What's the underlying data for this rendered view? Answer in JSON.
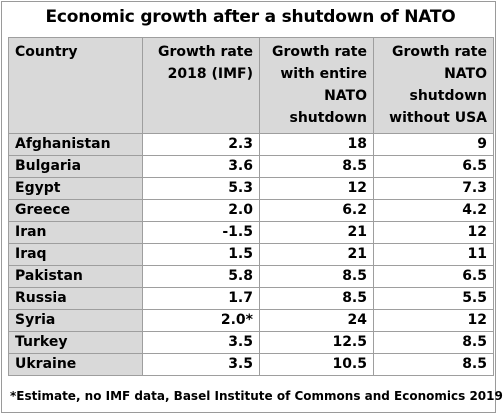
{
  "title": "Economic growth after a shutdown of NATO",
  "columns": [
    "Country",
    "Growth rate 2018 (IMF)",
    "Growth rate with entire NATO shutdown",
    "Growth rate NATO shutdown without USA"
  ],
  "rows": [
    {
      "country": "Afghanistan",
      "imf": "2.3",
      "full": "18",
      "no_usa": "9"
    },
    {
      "country": "Bulgaria",
      "imf": "3.6",
      "full": "8.5",
      "no_usa": "6.5"
    },
    {
      "country": "Egypt",
      "imf": "5.3",
      "full": "12",
      "no_usa": "7.3"
    },
    {
      "country": "Greece",
      "imf": "2.0",
      "full": "6.2",
      "no_usa": "4.2"
    },
    {
      "country": "Iran",
      "imf": "-1.5",
      "full": "21",
      "no_usa": "12"
    },
    {
      "country": "Iraq",
      "imf": "1.5",
      "full": "21",
      "no_usa": "11"
    },
    {
      "country": "Pakistan",
      "imf": "5.8",
      "full": "8.5",
      "no_usa": "6.5"
    },
    {
      "country": "Russia",
      "imf": "1.7",
      "full": "8.5",
      "no_usa": "5.5"
    },
    {
      "country": "Syria",
      "imf": "2.0*",
      "full": "24",
      "no_usa": "12"
    },
    {
      "country": "Turkey",
      "imf": "3.5",
      "full": "12.5",
      "no_usa": "8.5"
    },
    {
      "country": "Ukraine",
      "imf": "3.5",
      "full": "10.5",
      "no_usa": "8.5"
    }
  ],
  "footnote": "*Estimate, no IMF data, Basel Institute of Commons and Economics 2019",
  "colors": {
    "header_fill": "#d9d9d9",
    "border": "#9e9e9e"
  },
  "chart_data": {
    "type": "table",
    "title": "Economic growth after a shutdown of NATO",
    "columns": [
      "Country",
      "Growth rate 2018 (IMF)",
      "Growth rate with entire NATO shutdown",
      "Growth rate NATO shutdown without USA"
    ],
    "categories": [
      "Afghanistan",
      "Bulgaria",
      "Egypt",
      "Greece",
      "Iran",
      "Iraq",
      "Pakistan",
      "Russia",
      "Syria",
      "Turkey",
      "Ukraine"
    ],
    "series": [
      {
        "name": "Growth rate 2018 (IMF)",
        "values": [
          2.3,
          3.6,
          5.3,
          2.0,
          -1.5,
          1.5,
          5.8,
          1.7,
          2.0,
          3.5,
          3.5
        ]
      },
      {
        "name": "Growth rate with entire NATO shutdown",
        "values": [
          18,
          8.5,
          12,
          6.2,
          21,
          21,
          8.5,
          8.5,
          24,
          12.5,
          10.5
        ]
      },
      {
        "name": "Growth rate NATO shutdown without USA",
        "values": [
          9,
          6.5,
          7.3,
          4.2,
          12,
          11,
          6.5,
          5.5,
          12,
          8.5,
          8.5
        ]
      }
    ]
  }
}
